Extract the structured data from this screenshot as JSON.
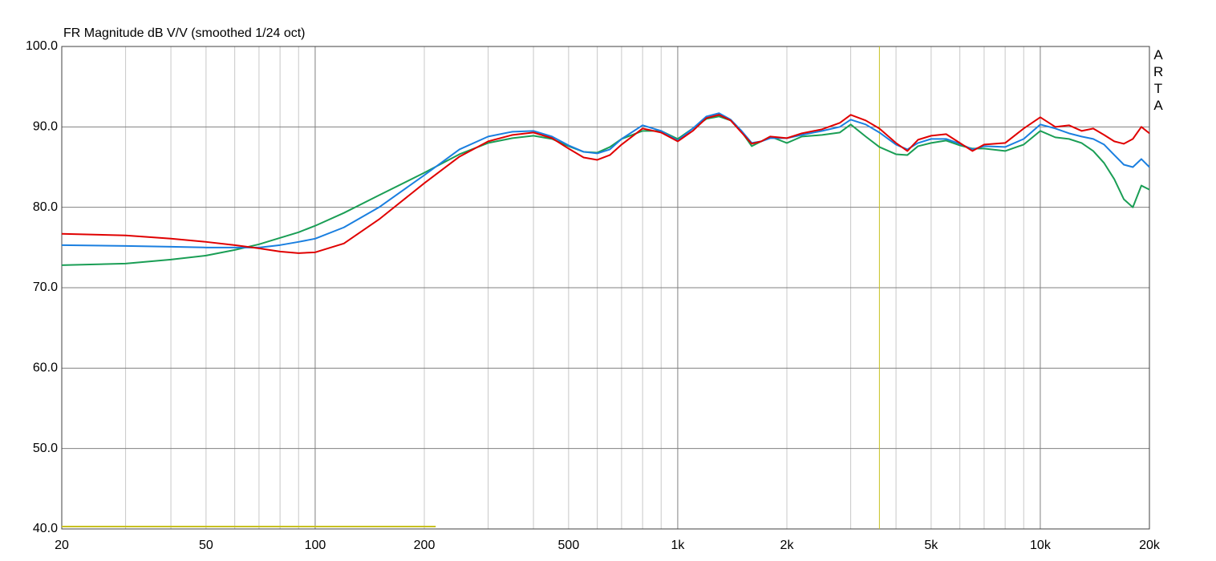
{
  "chart_data": {
    "type": "line",
    "title": "FR Magnitude dB V/V (smoothed 1/24 oct)",
    "watermark": "ARTA",
    "log_x": true,
    "grid": true,
    "xlim": [
      20,
      20000
    ],
    "ylim": [
      40,
      100
    ],
    "xticks": [
      20,
      50,
      100,
      200,
      500,
      {
        "value": 1000,
        "label": "1k"
      },
      {
        "value": 2000,
        "label": "2k"
      },
      {
        "value": 5000,
        "label": "5k"
      },
      {
        "value": 10000,
        "label": "10k"
      },
      {
        "value": 20000,
        "label": "20k"
      }
    ],
    "xgrid_minor": [
      30,
      40,
      60,
      70,
      80,
      90,
      300,
      400,
      600,
      700,
      800,
      900,
      3000,
      4000,
      6000,
      7000,
      8000,
      9000
    ],
    "yticks": [
      {
        "value": 40,
        "label": "40.0"
      },
      {
        "value": 50,
        "label": "50.0"
      },
      {
        "value": 60,
        "label": "60.0"
      },
      {
        "value": 70,
        "label": "70.0"
      },
      {
        "value": 80,
        "label": "80.0"
      },
      {
        "value": 90,
        "label": "90.0"
      },
      {
        "value": 100,
        "label": "100.0"
      }
    ],
    "x": [
      20,
      30,
      40,
      50,
      60,
      70,
      80,
      90,
      100,
      120,
      150,
      200,
      250,
      300,
      350,
      400,
      450,
      500,
      550,
      600,
      650,
      700,
      800,
      900,
      1000,
      1100,
      1200,
      1300,
      1400,
      1500,
      1600,
      1700,
      1800,
      2000,
      2200,
      2500,
      2800,
      3000,
      3300,
      3600,
      4000,
      4300,
      4600,
      5000,
      5500,
      6000,
      6500,
      7000,
      8000,
      9000,
      10000,
      11000,
      12000,
      13000,
      14000,
      15000,
      16000,
      17000,
      18000,
      19000,
      20000
    ],
    "series": [
      {
        "color": "#1a9e55",
        "values": [
          72.8,
          73.0,
          73.5,
          74.0,
          74.7,
          75.4,
          76.2,
          76.9,
          77.7,
          79.3,
          81.5,
          84.3,
          86.6,
          88.0,
          88.6,
          88.9,
          88.5,
          87.6,
          86.9,
          86.8,
          87.5,
          88.5,
          89.5,
          89.5,
          88.5,
          89.8,
          91.0,
          91.3,
          90.8,
          89.4,
          87.6,
          88.2,
          88.8,
          88.0,
          88.8,
          89.0,
          89.3,
          90.3,
          88.8,
          87.5,
          86.6,
          86.5,
          87.6,
          88.0,
          88.3,
          87.7,
          87.3,
          87.3,
          87.0,
          87.8,
          89.5,
          88.7,
          88.5,
          88.0,
          87.0,
          85.5,
          83.5,
          81.0,
          80.0,
          82.7,
          82.2
        ]
      },
      {
        "color": "#1a7fe0",
        "values": [
          75.3,
          75.2,
          75.1,
          75.0,
          75.0,
          75.0,
          75.3,
          75.7,
          76.1,
          77.5,
          80.0,
          84.0,
          87.2,
          88.8,
          89.4,
          89.5,
          88.8,
          87.7,
          86.9,
          86.7,
          87.2,
          88.5,
          90.2,
          89.5,
          88.3,
          89.8,
          91.3,
          91.7,
          90.9,
          89.5,
          88.0,
          88.2,
          88.6,
          88.6,
          89.0,
          89.5,
          90.0,
          90.9,
          90.3,
          89.3,
          87.8,
          87.2,
          88.0,
          88.5,
          88.5,
          87.9,
          87.2,
          87.6,
          87.5,
          88.5,
          90.3,
          89.8,
          89.2,
          88.8,
          88.5,
          87.8,
          86.5,
          85.3,
          85.0,
          86.0,
          85.0
        ]
      },
      {
        "color": "#e00000",
        "values": [
          76.7,
          76.5,
          76.1,
          75.7,
          75.3,
          74.9,
          74.5,
          74.3,
          74.4,
          75.5,
          78.5,
          83.0,
          86.3,
          88.2,
          89.0,
          89.3,
          88.6,
          87.3,
          86.2,
          85.9,
          86.5,
          87.8,
          89.8,
          89.3,
          88.2,
          89.5,
          91.1,
          91.5,
          90.8,
          89.3,
          87.9,
          88.2,
          88.8,
          88.6,
          89.2,
          89.7,
          90.5,
          91.5,
          90.8,
          89.8,
          88.0,
          87.0,
          88.4,
          88.9,
          89.1,
          88.0,
          87.0,
          87.8,
          88.0,
          89.8,
          91.2,
          90.0,
          90.2,
          89.5,
          89.8,
          89.0,
          88.2,
          87.9,
          88.5,
          90.0,
          89.2
        ]
      }
    ],
    "cursor": {
      "x": 3600,
      "color": "#c8c020"
    },
    "level_marker": {
      "x": [
        20,
        215
      ],
      "y": 40.3,
      "color": "#c8c020"
    }
  }
}
